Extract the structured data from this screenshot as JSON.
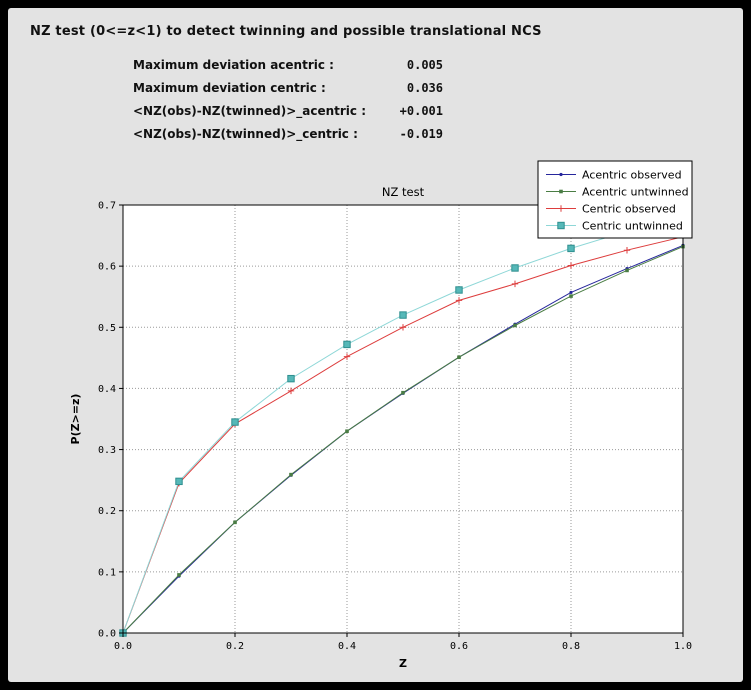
{
  "header": {
    "title": "NZ test (0<=z<1) to detect twinning and possible translational NCS"
  },
  "stats": {
    "rows": [
      {
        "label": "Maximum deviation acentric :",
        "value": "0.005"
      },
      {
        "label": "Maximum deviation centric :",
        "value": "0.036"
      },
      {
        "label": "<NZ(obs)-NZ(twinned)>_acentric :",
        "value": "+0.001"
      },
      {
        "label": "<NZ(obs)-NZ(twinned)>_centric :",
        "value": "-0.019"
      }
    ]
  },
  "chart_data": {
    "type": "line",
    "title": "NZ test",
    "xlabel": "Z",
    "ylabel": "P(Z>=z)",
    "xlim": [
      0.0,
      1.0
    ],
    "ylim": [
      0.0,
      0.7
    ],
    "xticks": [
      0.0,
      0.2,
      0.4,
      0.6,
      0.8,
      1.0
    ],
    "yticks": [
      0.0,
      0.1,
      0.2,
      0.3,
      0.4,
      0.5,
      0.6,
      0.7
    ],
    "grid": true,
    "legend_position": "upper right",
    "x": [
      0.0,
      0.1,
      0.2,
      0.3,
      0.4,
      0.5,
      0.6,
      0.7,
      0.8,
      0.9,
      1.0
    ],
    "series": [
      {
        "name": "Acentric observed",
        "color": "#26269c",
        "marker": "dot",
        "values": [
          0.0,
          0.093,
          0.181,
          0.258,
          0.33,
          0.392,
          0.451,
          0.505,
          0.557,
          0.596,
          0.634
        ]
      },
      {
        "name": "Acentric untwinned",
        "color": "#4a7d44",
        "marker": "square-small",
        "values": [
          0.0,
          0.095,
          0.181,
          0.259,
          0.33,
          0.393,
          0.451,
          0.503,
          0.551,
          0.593,
          0.632
        ]
      },
      {
        "name": "Centric observed",
        "color": "#dd3d3d",
        "marker": "plus",
        "values": [
          0.0,
          0.245,
          0.342,
          0.396,
          0.452,
          0.5,
          0.544,
          0.571,
          0.601,
          0.626,
          0.648
        ]
      },
      {
        "name": "Centric untwinned",
        "color": "#8ed7d7",
        "marker": "square",
        "marker_fill": "#56b8b8",
        "marker_edge": "#2e8f8f",
        "values": [
          0.0,
          0.248,
          0.345,
          0.416,
          0.472,
          0.52,
          0.561,
          0.597,
          0.629,
          0.657,
          0.683
        ]
      }
    ]
  }
}
